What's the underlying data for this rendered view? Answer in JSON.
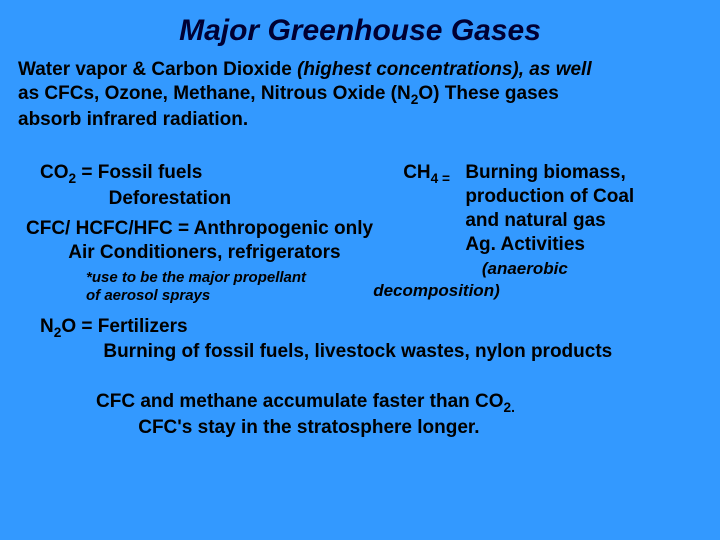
{
  "background_color": "#3399ff",
  "text_color": "#000000",
  "title_color": "#000033",
  "font_family": "Arial",
  "title": {
    "text": "Major Greenhouse Gases",
    "fontsize_pt": 30,
    "bold": true,
    "italic": true,
    "align": "center"
  },
  "intro": {
    "line1_a": "Water vapor & Carbon Dioxide ",
    "line1_b_italic": "(highest concentrations), as well",
    "line2_a": "as CFCs, Ozone, Methane, Nitrous Oxide (N",
    "line2_sub": "2",
    "line2_b": "O)  These gases",
    "line3": "absorb infrared radiation.",
    "fontsize_pt": 19,
    "bold": true
  },
  "left_col": {
    "co2": {
      "pre": "CO",
      "sub": "2",
      "eq": " =  ",
      "src1": "Fossil fuels",
      "src2": "Deforestation"
    },
    "cfc": {
      "label": "CFC/ HCFC/HFC =  ",
      "src1": "Anthropogenic only",
      "src2": "Air Conditioners, refrigerators"
    },
    "note": {
      "line1": "*use to be the major propellant",
      "line2": "of aerosol sprays",
      "fontsize_pt": 15,
      "italic": true
    }
  },
  "right_col": {
    "ch4": {
      "pre": "CH",
      "sub": "4 =",
      "src1": "Burning biomass,",
      "src2": "production of Coal",
      "src3": "and natural gas",
      "src4": "Ag. Activities"
    },
    "anaerobic": {
      "line1": "(anaerobic",
      "line2": "decomposition)",
      "fontsize_pt": 17,
      "italic": true
    }
  },
  "n2o": {
    "pre": "N",
    "sub": "2",
    "post": "O =  ",
    "src1": "Fertilizers",
    "src2": "Burning of fossil fuels, livestock wastes, nylon products"
  },
  "footer": {
    "line1_a": "CFC and methane accumulate faster than CO",
    "line1_sub": "2.",
    "line2": "CFC's stay in the stratosphere longer."
  }
}
